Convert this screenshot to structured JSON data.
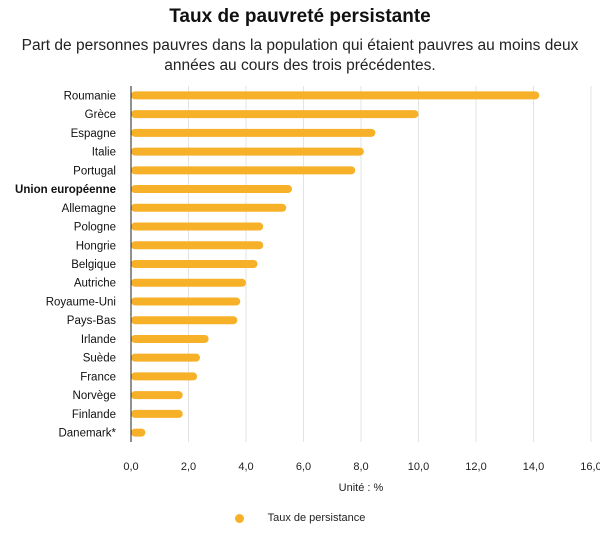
{
  "chart_data": {
    "type": "bar",
    "orientation": "horizontal",
    "title": "Taux de pauvreté persistante",
    "subtitle": "Part de personnes pauvres dans la population qui étaient pauvres au moins deux années au cours des trois précédentes.",
    "xlabel": "Unité : %",
    "ylabel": "",
    "xlim": [
      0,
      16
    ],
    "ticks": [
      0,
      2,
      4,
      6,
      8,
      10,
      12,
      14,
      16
    ],
    "tick_labels": [
      "0,0",
      "2,0",
      "4,0",
      "6,0",
      "8,0",
      "10,0",
      "12,0",
      "14,0",
      "16,0"
    ],
    "grid": "vertical",
    "legend_position": "bottom-center",
    "categories": [
      "Roumanie",
      "Grèce",
      "Espagne",
      "Italie",
      "Portugal",
      "Union européenne",
      "Allemagne",
      "Pologne",
      "Hongrie",
      "Belgique",
      "Autriche",
      "Royaume-Uni",
      "Pays-Bas",
      "Irlande",
      "Suède",
      "France",
      "Norvège",
      "Finlande",
      "Danemark*"
    ],
    "highlight_category": "Union européenne",
    "series": [
      {
        "name": "Taux de persistance",
        "color": "#f7b128",
        "values": [
          14.2,
          10.0,
          8.5,
          8.1,
          7.8,
          5.6,
          5.4,
          4.6,
          4.6,
          4.4,
          4.0,
          3.8,
          3.7,
          2.7,
          2.4,
          2.3,
          1.8,
          1.8,
          0.5
        ]
      }
    ]
  }
}
